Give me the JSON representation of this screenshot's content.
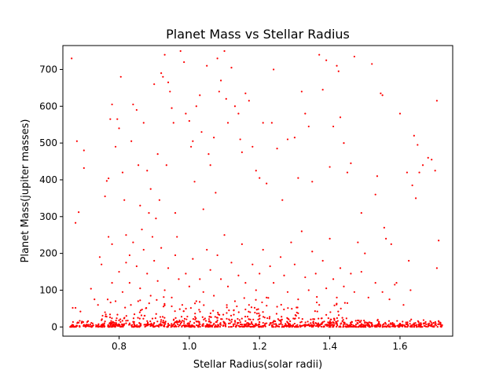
{
  "chart_data": {
    "type": "scatter",
    "title": "Planet Mass vs Stellar Radius",
    "xlabel": "Stellar Radius(solar radii)",
    "ylabel": "Planet Mass(jupiter masses)",
    "xlim": [
      0.64,
      1.75
    ],
    "ylim": [
      -25,
      765
    ],
    "xticks": [
      0.8,
      1.0,
      1.2,
      1.4,
      1.6
    ],
    "xtick_labels": [
      "0.8",
      "1.0",
      "1.2",
      "1.4",
      "1.6"
    ],
    "yticks": [
      0,
      100,
      200,
      300,
      400,
      500,
      600,
      700
    ],
    "ytick_labels": [
      "0",
      "100",
      "200",
      "300",
      "400",
      "500",
      "600",
      "700"
    ],
    "grid": false,
    "legend": false,
    "point_color": "#ff0000",
    "x_range_of_points": [
      0.66,
      1.72
    ],
    "series": [
      {
        "points": [
          [
            0.665,
            730
          ],
          [
            0.68,
            505
          ],
          [
            0.7,
            480
          ],
          [
            0.7,
            432
          ],
          [
            0.685,
            312
          ],
          [
            0.676,
            283
          ],
          [
            0.668,
            52
          ],
          [
            0.676,
            52
          ],
          [
            0.69,
            42
          ],
          [
            0.72,
            104
          ],
          [
            0.73,
            75
          ],
          [
            0.745,
            190
          ],
          [
            0.75,
            170
          ],
          [
            0.76,
            355
          ],
          [
            0.765,
            397
          ],
          [
            0.77,
            404
          ],
          [
            0.775,
            565
          ],
          [
            0.78,
            605
          ],
          [
            0.77,
            245
          ],
          [
            0.78,
            225
          ],
          [
            0.79,
            490
          ],
          [
            0.795,
            565
          ],
          [
            0.8,
            540
          ],
          [
            0.805,
            680
          ],
          [
            0.81,
            420
          ],
          [
            0.815,
            345
          ],
          [
            0.82,
            250
          ],
          [
            0.83,
            195
          ],
          [
            0.835,
            505
          ],
          [
            0.84,
            605
          ],
          [
            0.85,
            590
          ],
          [
            0.855,
            440
          ],
          [
            0.86,
            330
          ],
          [
            0.865,
            265
          ],
          [
            0.87,
            555
          ],
          [
            0.88,
            425
          ],
          [
            0.885,
            310
          ],
          [
            0.89,
            375
          ],
          [
            0.895,
            245
          ],
          [
            0.9,
            660
          ],
          [
            0.905,
            295
          ],
          [
            0.91,
            470
          ],
          [
            0.915,
            345
          ],
          [
            0.92,
            690
          ],
          [
            0.925,
            680
          ],
          [
            0.93,
            740
          ],
          [
            0.935,
            440
          ],
          [
            0.94,
            665
          ],
          [
            0.945,
            640
          ],
          [
            0.95,
            595
          ],
          [
            0.955,
            555
          ],
          [
            0.96,
            310
          ],
          [
            0.965,
            245
          ],
          [
            0.975,
            750
          ],
          [
            0.985,
            720
          ],
          [
            0.99,
            580
          ],
          [
            1.0,
            560
          ],
          [
            1.005,
            490
          ],
          [
            1.01,
            505
          ],
          [
            1.015,
            395
          ],
          [
            1.02,
            600
          ],
          [
            1.03,
            630
          ],
          [
            1.035,
            530
          ],
          [
            1.04,
            320
          ],
          [
            1.05,
            710
          ],
          [
            1.055,
            470
          ],
          [
            1.06,
            440
          ],
          [
            1.07,
            515
          ],
          [
            1.075,
            365
          ],
          [
            1.08,
            730
          ],
          [
            1.085,
            640
          ],
          [
            1.09,
            670
          ],
          [
            1.1,
            750
          ],
          [
            1.105,
            620
          ],
          [
            1.11,
            555
          ],
          [
            1.12,
            705
          ],
          [
            1.13,
            600
          ],
          [
            1.14,
            580
          ],
          [
            1.145,
            510
          ],
          [
            1.15,
            475
          ],
          [
            1.16,
            635
          ],
          [
            1.17,
            615
          ],
          [
            1.18,
            490
          ],
          [
            1.19,
            425
          ],
          [
            1.2,
            405
          ],
          [
            1.21,
            555
          ],
          [
            1.22,
            390
          ],
          [
            1.235,
            555
          ],
          [
            1.24,
            700
          ],
          [
            1.25,
            485
          ],
          [
            1.265,
            345
          ],
          [
            1.28,
            510
          ],
          [
            1.3,
            515
          ],
          [
            1.31,
            405
          ],
          [
            1.32,
            640
          ],
          [
            1.33,
            580
          ],
          [
            1.34,
            545
          ],
          [
            1.35,
            395
          ],
          [
            1.37,
            740
          ],
          [
            1.38,
            645
          ],
          [
            1.39,
            725
          ],
          [
            1.4,
            435
          ],
          [
            1.41,
            545
          ],
          [
            1.42,
            710
          ],
          [
            1.425,
            695
          ],
          [
            1.43,
            570
          ],
          [
            1.44,
            500
          ],
          [
            1.45,
            420
          ],
          [
            1.46,
            445
          ],
          [
            1.47,
            735
          ],
          [
            1.48,
            230
          ],
          [
            1.49,
            310
          ],
          [
            1.5,
            200
          ],
          [
            1.52,
            715
          ],
          [
            1.53,
            360
          ],
          [
            1.535,
            410
          ],
          [
            1.545,
            635
          ],
          [
            1.55,
            630
          ],
          [
            1.555,
            270
          ],
          [
            1.56,
            240
          ],
          [
            1.575,
            225
          ],
          [
            1.585,
            115
          ],
          [
            1.6,
            580
          ],
          [
            1.62,
            420
          ],
          [
            1.625,
            180
          ],
          [
            1.635,
            385
          ],
          [
            1.64,
            520
          ],
          [
            1.645,
            350
          ],
          [
            1.65,
            495
          ],
          [
            1.655,
            420
          ],
          [
            1.665,
            440
          ],
          [
            1.68,
            460
          ],
          [
            1.69,
            455
          ],
          [
            1.7,
            425
          ],
          [
            1.705,
            615
          ],
          [
            1.71,
            235
          ],
          [
            1.705,
            160
          ],
          [
            1.715,
            12
          ],
          [
            0.74,
            60
          ],
          [
            0.76,
            40
          ],
          [
            0.78,
            120
          ],
          [
            0.79,
            70
          ],
          [
            0.8,
            150
          ],
          [
            0.81,
            95
          ],
          [
            0.82,
            175
          ],
          [
            0.83,
            120
          ],
          [
            0.84,
            230
          ],
          [
            0.85,
            165
          ],
          [
            0.86,
            105
          ],
          [
            0.87,
            210
          ],
          [
            0.88,
            145
          ],
          [
            0.89,
            85
          ],
          [
            0.9,
            180
          ],
          [
            0.91,
            125
          ],
          [
            0.92,
            215
          ],
          [
            0.93,
            100
          ],
          [
            0.94,
            160
          ],
          [
            0.95,
            80
          ],
          [
            0.96,
            195
          ],
          [
            0.97,
            130
          ],
          [
            0.98,
            60
          ],
          [
            0.99,
            145
          ],
          [
            1.0,
            110
          ],
          [
            1.01,
            185
          ],
          [
            1.02,
            70
          ],
          [
            1.03,
            130
          ],
          [
            1.04,
            95
          ],
          [
            1.05,
            210
          ],
          [
            1.06,
            155
          ],
          [
            1.07,
            85
          ],
          [
            1.08,
            195
          ],
          [
            1.09,
            130
          ],
          [
            1.1,
            250
          ],
          [
            1.11,
            110
          ],
          [
            1.12,
            175
          ],
          [
            1.13,
            70
          ],
          [
            1.14,
            140
          ],
          [
            1.15,
            225
          ],
          [
            1.16,
            120
          ],
          [
            1.17,
            60
          ],
          [
            1.18,
            170
          ],
          [
            1.19,
            100
          ],
          [
            1.2,
            145
          ],
          [
            1.21,
            210
          ],
          [
            1.22,
            80
          ],
          [
            1.23,
            165
          ],
          [
            1.24,
            120
          ],
          [
            1.25,
            55
          ],
          [
            1.26,
            190
          ],
          [
            1.27,
            140
          ],
          [
            1.28,
            95
          ],
          [
            1.29,
            230
          ],
          [
            1.3,
            170
          ],
          [
            1.31,
            75
          ],
          [
            1.32,
            260
          ],
          [
            1.33,
            135
          ],
          [
            1.34,
            100
          ],
          [
            1.35,
            205
          ],
          [
            1.36,
            145
          ],
          [
            1.37,
            60
          ],
          [
            1.38,
            180
          ],
          [
            1.39,
            105
          ],
          [
            1.4,
            240
          ],
          [
            1.41,
            130
          ],
          [
            1.42,
            80
          ],
          [
            1.43,
            160
          ],
          [
            1.44,
            110
          ],
          [
            1.45,
            65
          ],
          [
            1.46,
            145
          ],
          [
            1.47,
            95
          ],
          [
            1.49,
            150
          ],
          [
            1.51,
            80
          ],
          [
            1.53,
            120
          ],
          [
            1.55,
            95
          ],
          [
            1.57,
            75
          ],
          [
            1.59,
            120
          ],
          [
            1.61,
            60
          ],
          [
            1.63,
            100
          ],
          [
            0.76,
            15
          ],
          [
            0.78,
            12
          ],
          [
            0.8,
            18
          ],
          [
            0.82,
            10
          ],
          [
            0.84,
            14
          ],
          [
            0.86,
            8
          ],
          [
            0.88,
            16
          ],
          [
            0.9,
            11
          ],
          [
            0.92,
            19
          ],
          [
            0.94,
            9
          ],
          [
            0.96,
            13
          ],
          [
            0.98,
            17
          ],
          [
            1.0,
            10
          ],
          [
            1.02,
            15
          ],
          [
            1.04,
            8
          ],
          [
            1.06,
            12
          ],
          [
            1.08,
            18
          ],
          [
            1.1,
            9
          ],
          [
            1.12,
            14
          ],
          [
            1.14,
            11
          ],
          [
            1.16,
            16
          ],
          [
            1.18,
            7
          ],
          [
            1.2,
            13
          ],
          [
            1.22,
            10
          ],
          [
            1.24,
            15
          ],
          [
            1.26,
            8
          ],
          [
            1.28,
            12
          ],
          [
            1.3,
            9
          ],
          [
            1.32,
            14
          ],
          [
            1.34,
            7
          ],
          [
            1.36,
            11
          ],
          [
            1.38,
            13
          ],
          [
            1.4,
            8
          ],
          [
            1.42,
            10
          ],
          [
            1.44,
            12
          ],
          [
            1.46,
            6
          ],
          [
            1.48,
            9
          ],
          [
            1.5,
            11
          ],
          [
            1.52,
            7
          ],
          [
            1.54,
            10
          ],
          [
            1.56,
            8
          ],
          [
            1.58,
            6
          ],
          [
            1.6,
            9
          ],
          [
            1.62,
            7
          ],
          [
            1.64,
            10
          ],
          [
            1.66,
            6
          ],
          [
            1.68,
            8
          ],
          [
            1.7,
            7
          ],
          [
            1.72,
            5
          ],
          [
            0.7,
            6
          ]
        ]
      }
    ]
  }
}
